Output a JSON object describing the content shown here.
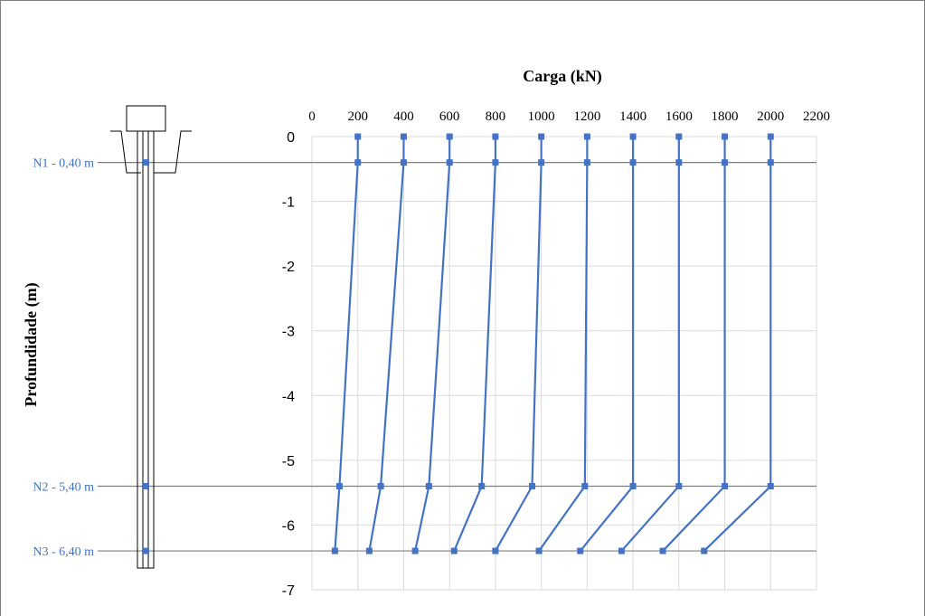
{
  "chart_data": {
    "type": "line",
    "title": "Carga (kN)",
    "xlabel": "Carga (kN)",
    "ylabel": "Profundidade (m)",
    "xlim": [
      0,
      2200
    ],
    "ylim": [
      -7,
      0
    ],
    "x_ticks": [
      "0",
      "200",
      "400",
      "600",
      "800",
      "1000",
      "1200",
      "1400",
      "1600",
      "1800",
      "2000",
      "2200"
    ],
    "y_ticks": [
      "0",
      "-1",
      "-2",
      "-3",
      "-4",
      "-5",
      "-6",
      "-7"
    ],
    "grid": true,
    "depths": [
      0,
      -0.4,
      -5.4,
      -6.4
    ],
    "series": [
      {
        "values": [
          200,
          200,
          120,
          100
        ]
      },
      {
        "values": [
          400,
          400,
          300,
          250
        ]
      },
      {
        "values": [
          600,
          600,
          510,
          450
        ]
      },
      {
        "values": [
          800,
          800,
          740,
          620
        ]
      },
      {
        "values": [
          1000,
          1000,
          960,
          800
        ]
      },
      {
        "values": [
          1200,
          1200,
          1190,
          990
        ]
      },
      {
        "values": [
          1400,
          1400,
          1400,
          1170
        ]
      },
      {
        "values": [
          1600,
          1600,
          1600,
          1350
        ]
      },
      {
        "values": [
          1800,
          1800,
          1800,
          1530
        ]
      },
      {
        "values": [
          2000,
          2000,
          2000,
          1710
        ]
      }
    ],
    "levels": [
      {
        "label": "N1 - 0,40 m",
        "depth": -0.4
      },
      {
        "label": "N2 - 5,40 m",
        "depth": -5.4
      },
      {
        "label": "N3 - 6,40 m",
        "depth": -6.4
      }
    ],
    "series_color": "#4472c4",
    "level_line_color": "#7f7f7f",
    "grid_color": "#d9d9d9"
  }
}
